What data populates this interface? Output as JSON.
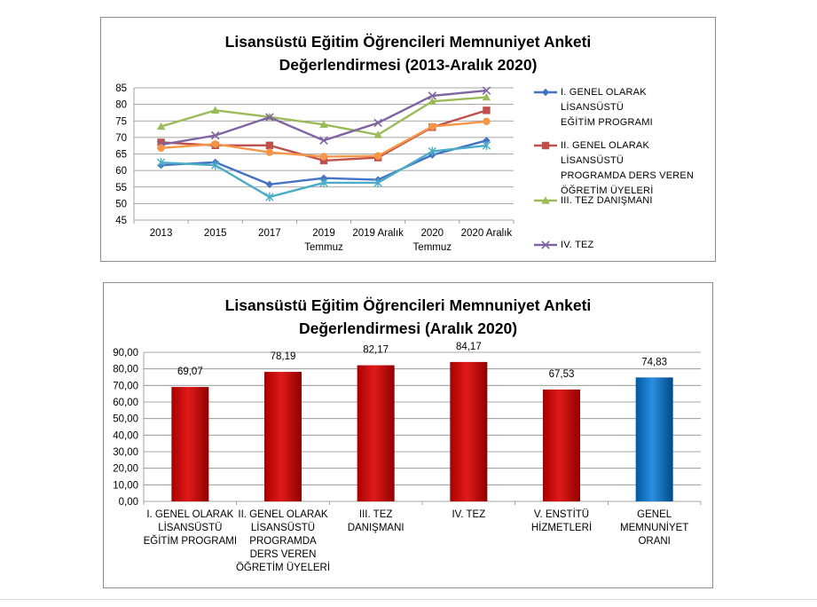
{
  "charts": [
    {
      "title_line1": "Lisansüstü Eğitim Öğrencileri Memnuniyet Anketi",
      "title_line2": "Değerlendirmesi (2013-Aralık 2020)"
    },
    {
      "title_line1": "Lisansüstü Eğitim Öğrencileri Memnuniyet Anketi",
      "title_line2": "Değerlendirmesi (Aralık 2020)"
    }
  ],
  "chart_data": [
    {
      "type": "line",
      "title": "Lisansüstü Eğitim Öğrencileri Memnuniyet Anketi Değerlendirmesi (2013-Aralık 2020)",
      "categories": [
        [
          "2013"
        ],
        [
          "2015"
        ],
        [
          "2017"
        ],
        [
          "2019",
          "Temmuz"
        ],
        [
          "2019 Aralık"
        ],
        [
          "2020",
          "Temmuz"
        ],
        [
          "2020 Aralık"
        ]
      ],
      "ylim": [
        45,
        85
      ],
      "yticks": [
        45,
        50,
        55,
        60,
        65,
        70,
        75,
        80,
        85
      ],
      "grid": true,
      "legend": "right",
      "series": [
        {
          "name": "I. GENEL OLARAK LİSANSÜSTÜ EĞİTİM PROGRAMI",
          "name_lines": [
            "I. GENEL OLARAK LİSANSÜSTÜ",
            "EĞİTİM PROGRAMI"
          ],
          "color": "#4472C4",
          "marker": "diamond",
          "values": [
            61.6,
            62.5,
            55.8,
            57.7,
            57.2,
            64.7,
            69.07
          ]
        },
        {
          "name": "II. GENEL OLARAK LİSANSÜSTÜ PROGRAMDA DERS VEREN ÖĞRETİM ÜYELERİ",
          "name_lines": [
            "II. GENEL OLARAK LİSANSÜSTÜ",
            "PROGRAMDA DERS VEREN",
            "ÖĞRETİM ÜYELERİ"
          ],
          "color": "#C0504D",
          "marker": "square",
          "values": [
            68.5,
            67.6,
            67.6,
            63.0,
            63.9,
            73.1,
            78.19
          ]
        },
        {
          "name": "III. TEZ DANIŞMANI",
          "name_lines": [
            "III. TEZ DANIŞMANI"
          ],
          "color": "#9BBB59",
          "marker": "triangle",
          "values": [
            73.3,
            78.2,
            76.2,
            73.9,
            70.8,
            80.9,
            82.17
          ]
        },
        {
          "name": "IV. TEZ",
          "name_lines": [
            "IV. TEZ"
          ],
          "color": "#8064A2",
          "marker": "x",
          "values": [
            67.8,
            70.6,
            76.1,
            69.1,
            74.4,
            82.6,
            84.17
          ]
        },
        {
          "name": "",
          "color": "#4BACC6",
          "marker": "star",
          "values": [
            62.4,
            61.6,
            52.0,
            56.3,
            56.3,
            65.8,
            67.53
          ]
        },
        {
          "name": "",
          "color": "#F79646",
          "marker": "circle",
          "values": [
            66.8,
            68.0,
            65.5,
            64.2,
            64.4,
            73.3,
            74.83
          ]
        }
      ]
    },
    {
      "type": "bar",
      "title": "Lisansüstü Eğitim Öğrencileri Memnuniyet Anketi Değerlendirmesi (Aralık 2020)",
      "ylim": [
        0,
        90
      ],
      "yticks": [
        "0,00",
        "10,00",
        "20,00",
        "30,00",
        "40,00",
        "50,00",
        "60,00",
        "70,00",
        "80,00",
        "90,00"
      ],
      "grid": true,
      "categories": [
        [
          "I. GENEL OLARAK",
          "LİSANSÜSTÜ",
          "EĞİTİM PROGRAMI"
        ],
        [
          "II. GENEL OLARAK",
          "LİSANSÜSTÜ",
          "PROGRAMDA",
          "DERS VEREN",
          "ÖĞRETİM ÜYELERİ"
        ],
        [
          "III. TEZ",
          "DANIŞMANI"
        ],
        [
          "IV. TEZ"
        ],
        [
          "V. ENSTİTÜ",
          "HİZMETLERİ"
        ],
        [
          "GENEL",
          "MEMNUNİYET",
          "ORANI"
        ]
      ],
      "values": [
        69.07,
        78.19,
        82.17,
        84.17,
        67.53,
        74.83
      ],
      "labels": [
        "69,07",
        "78,19",
        "82,17",
        "84,17",
        "67,53",
        "74,83"
      ],
      "colors": [
        "#C00000",
        "#C00000",
        "#C00000",
        "#C00000",
        "#C00000",
        "#0070C0"
      ]
    }
  ]
}
